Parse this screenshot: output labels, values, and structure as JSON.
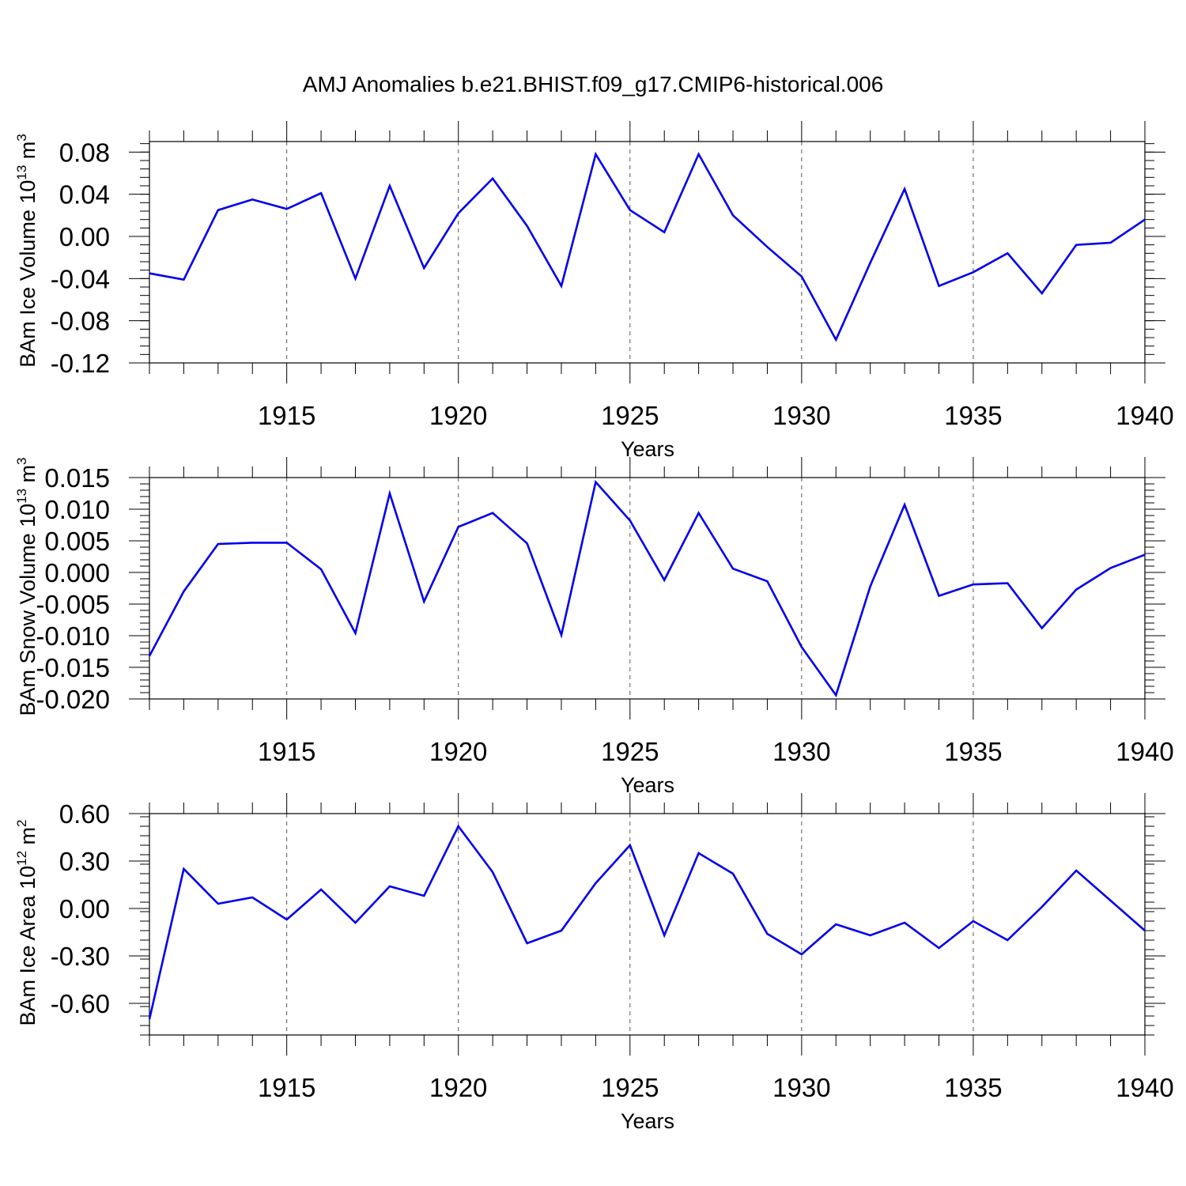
{
  "title": "AMJ Anomalies b.e21.BHIST.f09_g17.CMIP6-historical.006",
  "line_color": "#0000ee",
  "chart_data": [
    {
      "type": "line",
      "ylabel_main": "BAm Ice Volume 10",
      "ylabel_exp": "13",
      "ylabel_unit": " m",
      "ylabel_unit_exp": "3",
      "xlabel": "Years",
      "xlim": [
        1911,
        1940
      ],
      "ylim": [
        -0.12,
        0.09
      ],
      "x_ticks": [
        "1915",
        "1920",
        "1925",
        "1930",
        "1935",
        "1940"
      ],
      "y_ticks": [
        "0.08",
        "0.04",
        "0.00",
        "-0.04",
        "-0.08",
        "-0.12"
      ],
      "grid_x": true,
      "x": [
        1911,
        1912,
        1913,
        1914,
        1915,
        1916,
        1917,
        1918,
        1919,
        1920,
        1921,
        1922,
        1923,
        1924,
        1925,
        1926,
        1927,
        1928,
        1929,
        1930,
        1931,
        1932,
        1933,
        1934,
        1935,
        1936,
        1937,
        1938,
        1939,
        1940
      ],
      "values": [
        -0.035,
        -0.041,
        0.025,
        0.035,
        0.026,
        0.041,
        -0.04,
        0.048,
        -0.03,
        0.022,
        0.055,
        0.01,
        -0.047,
        0.078,
        0.025,
        0.004,
        0.078,
        0.02,
        -0.01,
        -0.038,
        -0.098,
        -0.025,
        0.045,
        -0.047,
        -0.034,
        -0.016,
        -0.054,
        -0.008,
        -0.006,
        0.016
      ]
    },
    {
      "type": "line",
      "ylabel_main": "BAm Snow Volume 10",
      "ylabel_exp": "13",
      "ylabel_unit": " m",
      "ylabel_unit_exp": "3",
      "xlabel": "Years",
      "xlim": [
        1911,
        1940
      ],
      "ylim": [
        -0.02,
        0.015
      ],
      "x_ticks": [
        "1915",
        "1920",
        "1925",
        "1930",
        "1935",
        "1940"
      ],
      "y_ticks": [
        "0.015",
        "0.010",
        "0.005",
        "0.000",
        "-0.005",
        "-0.010",
        "-0.015",
        "-0.020"
      ],
      "grid_x": true,
      "x": [
        1911,
        1912,
        1913,
        1914,
        1915,
        1916,
        1917,
        1918,
        1919,
        1920,
        1921,
        1922,
        1923,
        1924,
        1925,
        1926,
        1927,
        1928,
        1929,
        1930,
        1931,
        1932,
        1933,
        1934,
        1935,
        1936,
        1937,
        1938,
        1939,
        1940
      ],
      "values": [
        -0.0132,
        -0.003,
        0.0045,
        0.0047,
        0.0047,
        0.0005,
        -0.0096,
        0.0125,
        -0.0046,
        0.0072,
        0.0094,
        0.0046,
        -0.0099,
        0.0143,
        0.0082,
        -0.0012,
        0.0094,
        0.0006,
        -0.0014,
        -0.0118,
        -0.0194,
        -0.0022,
        0.0107,
        -0.0037,
        -0.0019,
        -0.0017,
        -0.0088,
        -0.0027,
        0.0007,
        0.0028
      ]
    },
    {
      "type": "line",
      "ylabel_main": "BAm Ice Area 10",
      "ylabel_exp": "12",
      "ylabel_unit": " m",
      "ylabel_unit_exp": "2",
      "xlabel": "Years",
      "xlim": [
        1911,
        1940
      ],
      "ylim": [
        -0.8,
        0.6
      ],
      "x_ticks": [
        "1915",
        "1920",
        "1925",
        "1930",
        "1935",
        "1940"
      ],
      "y_ticks": [
        "0.60",
        "0.30",
        "0.00",
        "-0.30",
        "-0.60"
      ],
      "grid_x": true,
      "x": [
        1911,
        1912,
        1913,
        1914,
        1915,
        1916,
        1917,
        1918,
        1919,
        1920,
        1921,
        1922,
        1923,
        1924,
        1925,
        1926,
        1927,
        1928,
        1929,
        1930,
        1931,
        1932,
        1933,
        1934,
        1935,
        1936,
        1937,
        1938,
        1939,
        1940
      ],
      "values": [
        -0.7,
        0.25,
        0.03,
        0.07,
        -0.07,
        0.12,
        -0.09,
        0.14,
        0.08,
        0.52,
        0.23,
        -0.22,
        -0.14,
        0.16,
        0.4,
        -0.17,
        0.35,
        0.22,
        -0.16,
        -0.29,
        -0.1,
        -0.17,
        -0.09,
        -0.25,
        -0.08,
        -0.2,
        0.01,
        0.24,
        0.05,
        -0.14
      ]
    }
  ]
}
